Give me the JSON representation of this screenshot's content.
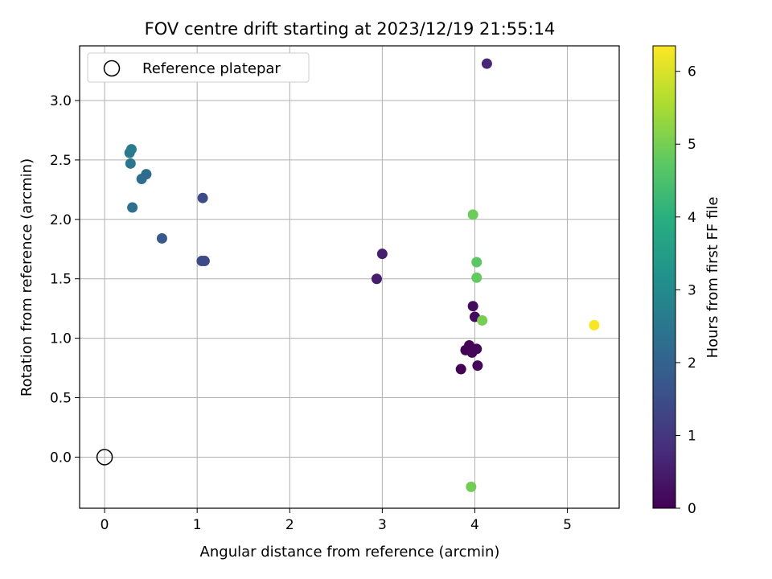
{
  "chart_data": {
    "type": "scatter",
    "title": "FOV centre drift starting at 2023/12/19 21:55:14",
    "xlabel": "Angular distance from reference (arcmin)",
    "ylabel": "Rotation from reference (arcmin)",
    "xlim": [
      -0.27,
      5.56
    ],
    "ylim": [
      -0.43,
      3.46
    ],
    "xticks": [
      0,
      1,
      2,
      3,
      4,
      5
    ],
    "xtick_labels": [
      "0",
      "1",
      "2",
      "3",
      "4",
      "5"
    ],
    "yticks": [
      0.0,
      0.5,
      1.0,
      1.5,
      2.0,
      2.5,
      3.0
    ],
    "ytick_labels": [
      "0.0",
      "0.5",
      "1.0",
      "1.5",
      "2.0",
      "2.5",
      "3.0"
    ],
    "grid": true,
    "legend": {
      "position": "top-left",
      "label": "Reference platepar"
    },
    "reference_point": {
      "x": 0,
      "y": 0
    },
    "colorbar": {
      "label": "Hours from first FF file",
      "range": [
        0,
        6.35
      ],
      "ticks": [
        0,
        1,
        2,
        3,
        4,
        5,
        6
      ],
      "tick_labels": [
        "0",
        "1",
        "2",
        "3",
        "4",
        "5",
        "6"
      ],
      "colormap": "viridis"
    },
    "points": [
      {
        "x": 3.85,
        "y": 0.74,
        "c": 0.02
      },
      {
        "x": 3.9,
        "y": 0.9,
        "c": 0.05
      },
      {
        "x": 3.94,
        "y": 0.94,
        "c": 0.07
      },
      {
        "x": 3.97,
        "y": 0.88,
        "c": 0.1
      },
      {
        "x": 4.02,
        "y": 0.91,
        "c": 0.12
      },
      {
        "x": 4.03,
        "y": 0.77,
        "c": 0.15
      },
      {
        "x": 3.98,
        "y": 1.27,
        "c": 0.18
      },
      {
        "x": 4.0,
        "y": 1.18,
        "c": 0.2
      },
      {
        "x": 2.94,
        "y": 1.5,
        "c": 0.5
      },
      {
        "x": 3.0,
        "y": 1.71,
        "c": 0.55
      },
      {
        "x": 4.13,
        "y": 3.31,
        "c": 0.7
      },
      {
        "x": 1.05,
        "y": 1.65,
        "c": 1.35
      },
      {
        "x": 1.08,
        "y": 1.65,
        "c": 1.4
      },
      {
        "x": 1.06,
        "y": 2.18,
        "c": 1.45
      },
      {
        "x": 0.62,
        "y": 1.84,
        "c": 1.75
      },
      {
        "x": 0.3,
        "y": 2.1,
        "c": 2.3
      },
      {
        "x": 0.4,
        "y": 2.34,
        "c": 2.25
      },
      {
        "x": 0.45,
        "y": 2.38,
        "c": 2.2
      },
      {
        "x": 0.28,
        "y": 2.47,
        "c": 2.45
      },
      {
        "x": 0.27,
        "y": 2.56,
        "c": 2.55
      },
      {
        "x": 0.29,
        "y": 2.59,
        "c": 2.6
      },
      {
        "x": 3.98,
        "y": 2.04,
        "c": 4.9
      },
      {
        "x": 4.02,
        "y": 1.64,
        "c": 4.7
      },
      {
        "x": 4.02,
        "y": 1.51,
        "c": 4.8
      },
      {
        "x": 4.08,
        "y": 1.15,
        "c": 5.0
      },
      {
        "x": 3.96,
        "y": -0.25,
        "c": 4.95
      },
      {
        "x": 5.29,
        "y": 1.11,
        "c": 6.3
      }
    ]
  }
}
